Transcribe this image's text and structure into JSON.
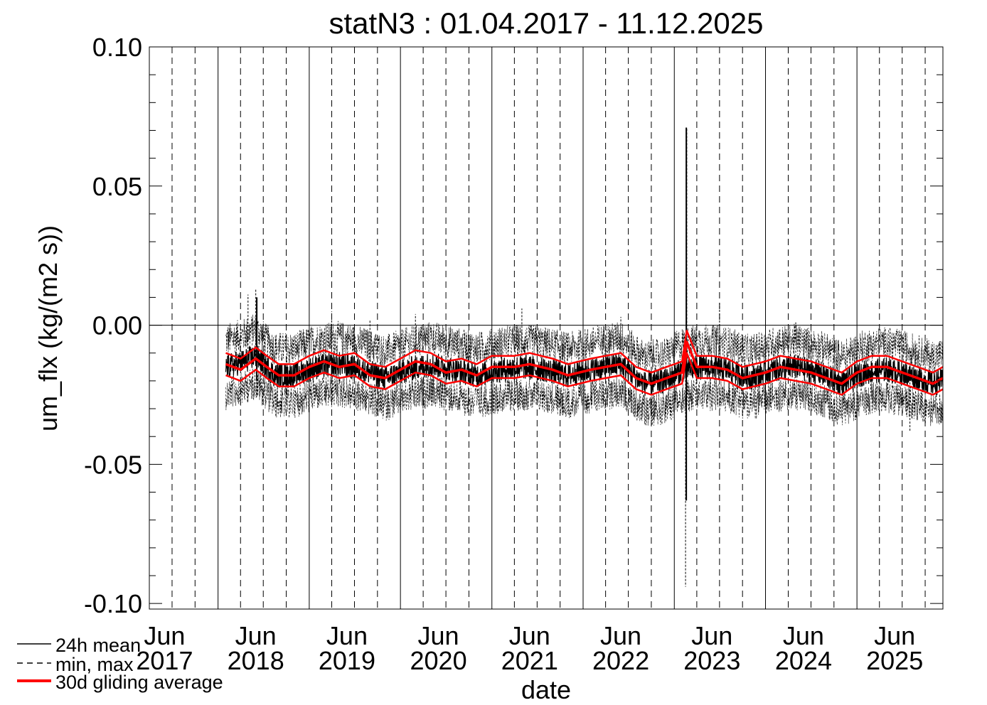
{
  "chart_data": {
    "type": "line",
    "title": "statN3 : 01.04.2017 - 11.12.2025",
    "xlabel": "date",
    "ylabel": "um_flx (kg/(m2 s))",
    "x_range": [
      "2017-04-01",
      "2025-12-11"
    ],
    "ylim": [
      -0.102,
      0.1
    ],
    "y_ticks": [
      {
        "value": 0.1,
        "label": "0.10"
      },
      {
        "value": 0.05,
        "label": "0.05"
      },
      {
        "value": 0.0,
        "label": "0.00"
      },
      {
        "value": -0.05,
        "label": "-0.05"
      },
      {
        "value": -0.1,
        "label": "-0.10"
      }
    ],
    "y_minor_ticks": [
      0.09,
      0.08,
      0.07,
      0.06,
      0.04,
      0.03,
      0.02,
      0.01,
      -0.01,
      -0.02,
      -0.03,
      -0.04,
      -0.06,
      -0.07,
      -0.08,
      -0.09
    ],
    "x_tick_labels": [
      {
        "date": "2017-06-01",
        "month": "Jun",
        "year": "2017"
      },
      {
        "date": "2018-06-01",
        "month": "Jun",
        "year": "2018"
      },
      {
        "date": "2019-06-01",
        "month": "Jun",
        "year": "2019"
      },
      {
        "date": "2020-06-01",
        "month": "Jun",
        "year": "2020"
      },
      {
        "date": "2021-06-01",
        "month": "Jun",
        "year": "2021"
      },
      {
        "date": "2022-06-01",
        "month": "Jun",
        "year": "2022"
      },
      {
        "date": "2023-06-01",
        "month": "Jun",
        "year": "2023"
      },
      {
        "date": "2024-06-01",
        "month": "Jun",
        "year": "2024"
      },
      {
        "date": "2025-06-01",
        "month": "Jun",
        "year": "2025"
      }
    ],
    "year_lines": [
      "2018-01-01",
      "2019-01-01",
      "2020-01-01",
      "2021-01-01",
      "2022-01-01",
      "2023-01-01",
      "2024-01-01",
      "2025-01-01"
    ],
    "quarter_lines": [
      "2017-04-01",
      "2017-07-01",
      "2017-10-01",
      "2018-04-01",
      "2018-07-01",
      "2018-10-01",
      "2019-04-01",
      "2019-07-01",
      "2019-10-01",
      "2020-04-01",
      "2020-07-01",
      "2020-10-01",
      "2021-04-01",
      "2021-07-01",
      "2021-10-01",
      "2022-04-01",
      "2022-07-01",
      "2022-10-01",
      "2023-04-01",
      "2023-07-01",
      "2023-10-01",
      "2024-04-01",
      "2024-07-01",
      "2024-10-01",
      "2025-04-01",
      "2025-07-01",
      "2025-10-01"
    ],
    "zero_line": 0.0,
    "legend": {
      "placement": "bottom-left",
      "entries": [
        {
          "label": "24h mean",
          "style": "solid",
          "color": "#000000"
        },
        {
          "label": "min, max",
          "style": "dashed",
          "color": "#000000"
        },
        {
          "label": "30d gliding average",
          "style": "solid-thick",
          "color": "#ff0000"
        }
      ]
    },
    "series": [
      {
        "name": "24h mean",
        "color": "#000000",
        "noise": 0.0045,
        "points": [
          [
            "2018-02-01",
            -0.015
          ],
          [
            "2018-04-15",
            -0.013
          ],
          [
            "2018-06-01",
            -0.011
          ],
          [
            "2018-08-15",
            -0.018
          ],
          [
            "2018-11-01",
            -0.018
          ],
          [
            "2019-02-01",
            -0.015
          ],
          [
            "2019-05-01",
            -0.014
          ],
          [
            "2019-08-01",
            -0.016
          ],
          [
            "2019-11-01",
            -0.019
          ],
          [
            "2020-02-01",
            -0.016
          ],
          [
            "2020-05-01",
            -0.014
          ],
          [
            "2020-08-01",
            -0.016
          ],
          [
            "2020-11-01",
            -0.018
          ],
          [
            "2021-02-01",
            -0.016
          ],
          [
            "2021-05-01",
            -0.015
          ],
          [
            "2021-08-01",
            -0.016
          ],
          [
            "2021-11-01",
            -0.018
          ],
          [
            "2022-02-01",
            -0.016
          ],
          [
            "2022-06-01",
            -0.014
          ],
          [
            "2022-09-01",
            -0.021
          ],
          [
            "2022-12-01",
            -0.02
          ],
          [
            "2023-02-01",
            -0.016
          ],
          [
            "2023-05-01",
            -0.015
          ],
          [
            "2023-08-01",
            -0.016
          ],
          [
            "2023-11-01",
            -0.019
          ],
          [
            "2024-02-01",
            -0.016
          ],
          [
            "2024-05-01",
            -0.015
          ],
          [
            "2024-08-01",
            -0.017
          ],
          [
            "2024-11-01",
            -0.021
          ],
          [
            "2025-02-01",
            -0.017
          ],
          [
            "2025-05-01",
            -0.016
          ],
          [
            "2025-08-01",
            -0.018
          ],
          [
            "2025-11-01",
            -0.021
          ],
          [
            "2025-12-11",
            -0.02
          ]
        ]
      },
      {
        "name": "min, max",
        "color": "#000000",
        "spread": 0.012,
        "spikes": [
          [
            "2018-05-01",
            0.011
          ],
          [
            "2018-06-01",
            0.013
          ],
          [
            "2019-04-01",
            0.005
          ],
          [
            "2019-09-01",
            0.002
          ],
          [
            "2020-03-01",
            0.004
          ],
          [
            "2021-05-01",
            0.006
          ],
          [
            "2022-06-01",
            0.003
          ],
          [
            "2023-02-15",
            -0.094
          ],
          [
            "2023-02-20",
            0.071
          ],
          [
            "2023-07-01",
            0.008
          ],
          [
            "2024-05-01",
            0.001
          ],
          [
            "2025-08-01",
            -0.038
          ]
        ]
      },
      {
        "name": "30d gliding average",
        "color": "#ff0000",
        "points": [
          [
            "2018-02-01",
            -0.014
          ],
          [
            "2018-04-01",
            -0.016
          ],
          [
            "2018-06-01",
            -0.012
          ],
          [
            "2018-07-15",
            -0.015
          ],
          [
            "2018-09-01",
            -0.018
          ],
          [
            "2018-11-01",
            -0.018
          ],
          [
            "2019-01-01",
            -0.015
          ],
          [
            "2019-03-01",
            -0.013
          ],
          [
            "2019-05-01",
            -0.015
          ],
          [
            "2019-07-01",
            -0.014
          ],
          [
            "2019-09-01",
            -0.018
          ],
          [
            "2019-11-01",
            -0.019
          ],
          [
            "2020-01-01",
            -0.016
          ],
          [
            "2020-03-01",
            -0.013
          ],
          [
            "2020-05-01",
            -0.014
          ],
          [
            "2020-07-01",
            -0.017
          ],
          [
            "2020-09-01",
            -0.016
          ],
          [
            "2020-11-01",
            -0.018
          ],
          [
            "2021-01-01",
            -0.015
          ],
          [
            "2021-04-01",
            -0.015
          ],
          [
            "2021-06-01",
            -0.014
          ],
          [
            "2021-09-01",
            -0.016
          ],
          [
            "2021-11-01",
            -0.018
          ],
          [
            "2022-02-01",
            -0.016
          ],
          [
            "2022-04-01",
            -0.015
          ],
          [
            "2022-06-01",
            -0.014
          ],
          [
            "2022-08-01",
            -0.019
          ],
          [
            "2022-10-01",
            -0.021
          ],
          [
            "2022-12-01",
            -0.019
          ],
          [
            "2023-02-01",
            -0.017
          ],
          [
            "2023-02-20",
            -0.006
          ],
          [
            "2023-04-01",
            -0.015
          ],
          [
            "2023-06-01",
            -0.015
          ],
          [
            "2023-08-01",
            -0.016
          ],
          [
            "2023-10-01",
            -0.019
          ],
          [
            "2024-01-01",
            -0.017
          ],
          [
            "2024-03-01",
            -0.015
          ],
          [
            "2024-05-01",
            -0.016
          ],
          [
            "2024-07-01",
            -0.017
          ],
          [
            "2024-09-01",
            -0.019
          ],
          [
            "2024-11-01",
            -0.021
          ],
          [
            "2025-01-01",
            -0.017
          ],
          [
            "2025-03-01",
            -0.015
          ],
          [
            "2025-05-01",
            -0.015
          ],
          [
            "2025-07-01",
            -0.017
          ],
          [
            "2025-09-01",
            -0.019
          ],
          [
            "2025-11-01",
            -0.021
          ],
          [
            "2025-12-11",
            -0.019
          ]
        ],
        "band_offset": 0.004
      }
    ]
  }
}
